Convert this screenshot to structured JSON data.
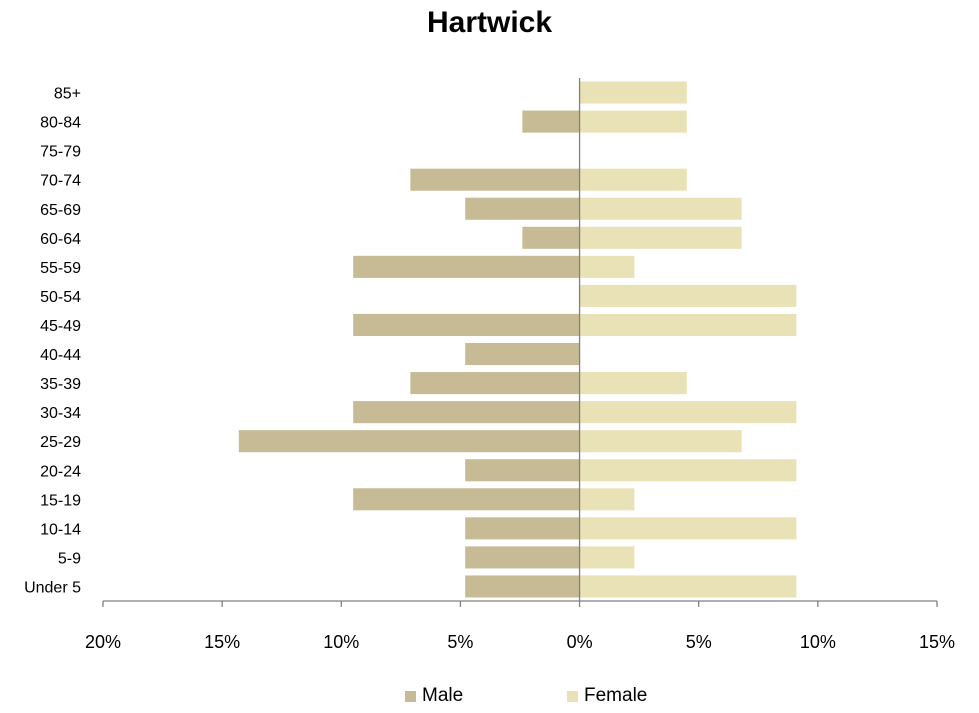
{
  "chart_data": {
    "type": "bar",
    "orientation": "horizontal",
    "title": "Hartwick",
    "categories": [
      "Under 5",
      "5-9",
      "10-14",
      "15-19",
      "20-24",
      "25-29",
      "30-34",
      "35-39",
      "40-44",
      "45-49",
      "50-54",
      "55-59",
      "60-64",
      "65-69",
      "70-74",
      "75-79",
      "80-84",
      "85+"
    ],
    "series": [
      {
        "name": "Male",
        "color": "#c7bb96",
        "values": [
          4.8,
          4.8,
          4.8,
          9.5,
          4.8,
          14.3,
          9.5,
          7.1,
          4.8,
          9.5,
          0,
          9.5,
          2.4,
          4.8,
          7.1,
          0,
          2.4,
          0
        ]
      },
      {
        "name": "Female",
        "color": "#eae2b7",
        "values": [
          9.1,
          2.3,
          9.1,
          2.3,
          9.1,
          6.8,
          9.1,
          4.5,
          0,
          9.1,
          9.1,
          2.3,
          6.8,
          6.8,
          4.5,
          0,
          4.5,
          4.5
        ]
      }
    ],
    "xlim": [
      -20,
      15
    ],
    "xticks": [
      -20,
      -15,
      -10,
      -5,
      0,
      5,
      10,
      15
    ],
    "xtick_labels": [
      "20%",
      "15%",
      "10%",
      "5%",
      "0%",
      "5%",
      "10%",
      "15%"
    ],
    "legend_position": "bottom",
    "grid": false
  }
}
